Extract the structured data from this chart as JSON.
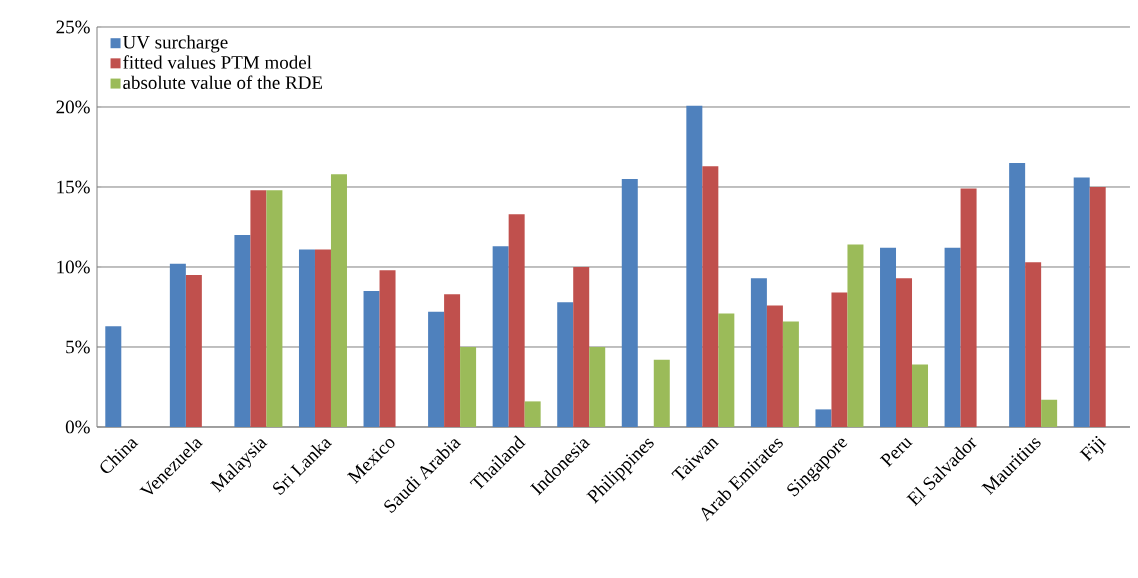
{
  "chart_data": {
    "type": "bar",
    "categories": [
      "China",
      "Venezuela",
      "Malaysia",
      "Sri Lanka",
      "Mexico",
      "Saudi Arabia",
      "Thailand",
      "Indonesia",
      "Philippines",
      "Taiwan",
      "Arab Emirates",
      "Singapore",
      "Peru",
      "El Salvador",
      "Mauritius",
      "Fiji"
    ],
    "series": [
      {
        "name": "UV surcharge",
        "color": "#4f81bd",
        "values": [
          6.3,
          10.2,
          12.0,
          11.1,
          8.5,
          7.2,
          11.3,
          7.8,
          15.5,
          20.1,
          9.3,
          1.1,
          11.2,
          11.2,
          16.5,
          15.6
        ]
      },
      {
        "name": "fitted values PTM model",
        "color": "#c0504d",
        "values": [
          null,
          9.5,
          14.8,
          11.1,
          9.8,
          8.3,
          13.3,
          10.0,
          null,
          16.3,
          7.6,
          8.4,
          9.3,
          14.9,
          10.3,
          15.0
        ]
      },
      {
        "name": "absolute value of the RDE",
        "color": "#9bbb59",
        "values": [
          null,
          null,
          14.8,
          15.8,
          null,
          5.0,
          1.6,
          5.0,
          4.2,
          7.1,
          6.6,
          11.4,
          3.9,
          null,
          1.7,
          null
        ]
      }
    ],
    "ylim": [
      0,
      25
    ],
    "yticks": [
      {
        "value": 0,
        "label": "0%"
      },
      {
        "value": 5,
        "label": "5%"
      },
      {
        "value": 10,
        "label": "10%"
      },
      {
        "value": 15,
        "label": "15%"
      },
      {
        "value": 20,
        "label": "20%"
      },
      {
        "value": 25,
        "label": "25%"
      }
    ],
    "grid": "y",
    "legend": "top left"
  }
}
